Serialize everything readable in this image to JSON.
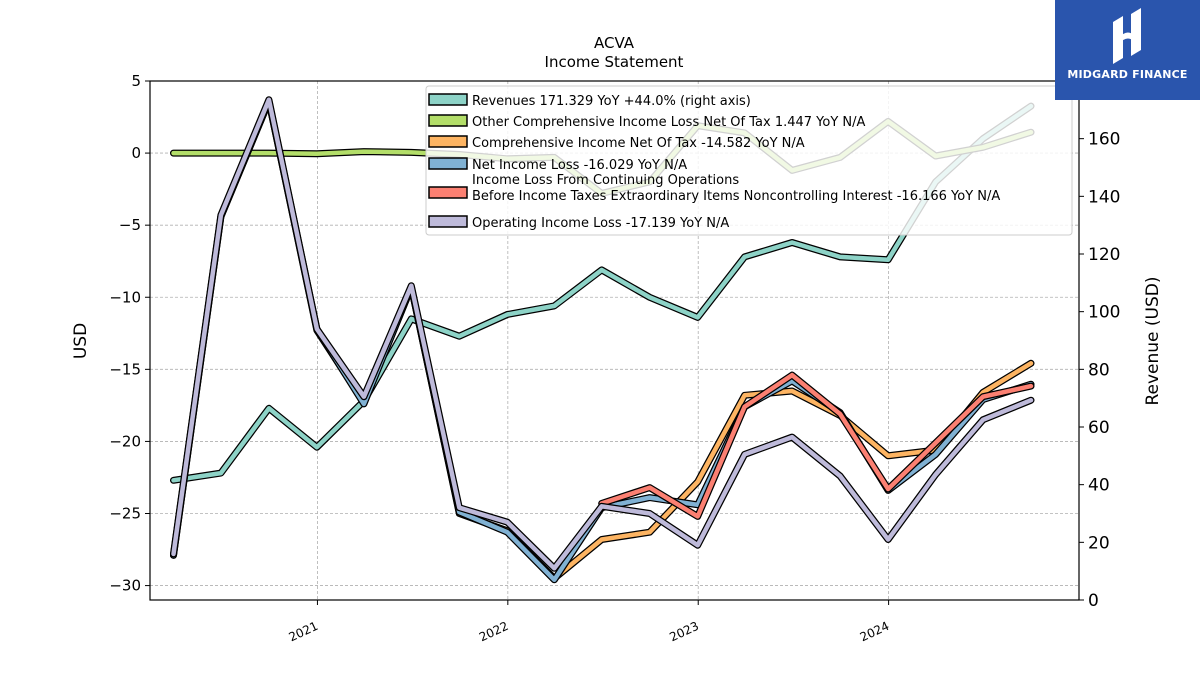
{
  "brand": {
    "name": "MIDGARD FINANCE",
    "icon": "midgard-logo-icon",
    "bg_color": "#2a55ad"
  },
  "chart_data": {
    "type": "line",
    "title": "ACVA",
    "subtitle": "Income Statement",
    "ylabel": "USD",
    "y2label": "Revenue (USD)",
    "ylim": [
      -31,
      5
    ],
    "y2lim": [
      0,
      180
    ],
    "yticks": [
      5,
      0,
      -5,
      -10,
      -15,
      -20,
      -25,
      -30
    ],
    "y2ticks": [
      0,
      20,
      40,
      60,
      80,
      100,
      120,
      140,
      160
    ],
    "xlim": [
      "2020-02-15",
      "2024-12-31"
    ],
    "xticks": [
      {
        "date": "2021-01-01",
        "label": "2021"
      },
      {
        "date": "2022-01-01",
        "label": "2022"
      },
      {
        "date": "2023-01-01",
        "label": "2023"
      },
      {
        "date": "2024-01-01",
        "label": "2024"
      }
    ],
    "grid": true,
    "legend_position": "top-right",
    "x": [
      "2020-03-31",
      "2020-06-30",
      "2020-09-30",
      "2020-12-31",
      "2021-03-31",
      "2021-06-30",
      "2021-09-30",
      "2021-12-31",
      "2022-03-31",
      "2022-06-30",
      "2022-09-30",
      "2022-12-31",
      "2023-03-31",
      "2023-06-30",
      "2023-09-30",
      "2023-12-31",
      "2024-03-31",
      "2024-06-30",
      "2024-09-30"
    ],
    "series": [
      {
        "name": "Revenues  171.329 YoY +44.0% (right axis)",
        "color": "#8dd3c7",
        "axis": "right",
        "values": [
          41.5,
          44,
          66.5,
          53,
          69,
          97.5,
          91.5,
          99,
          102,
          114.5,
          105,
          98,
          119,
          124,
          119,
          118,
          145,
          160,
          171.3
        ]
      },
      {
        "name": "Other Comprehensive Income Loss Net Of Tax  1.447 YoY N/A",
        "color": "#b3de69",
        "axis": "left",
        "values": [
          0.0,
          0.0,
          0.0,
          -0.05,
          0.1,
          0.05,
          -0.1,
          -0.4,
          -0.3,
          -2.8,
          -2.0,
          1.9,
          1.4,
          -1.2,
          -0.3,
          2.2,
          -0.2,
          0.4,
          1.447
        ]
      },
      {
        "name": "Comprehensive Income Net Of Tax  -14.582 YoY N/A",
        "color": "#fdb462",
        "axis": "left",
        "values": [
          -27.9,
          -4.4,
          3.6,
          -12.3,
          -17.3,
          -9.3,
          -25.0,
          -26.2,
          -29.5,
          -26.8,
          -26.3,
          -22.8,
          -16.8,
          -16.5,
          -18.2,
          -21.0,
          -20.6,
          -16.6,
          -14.582
        ]
      },
      {
        "name": "Net Income Loss  -16.029 YoY N/A",
        "color": "#80b1d3",
        "axis": "left",
        "values": [
          -27.9,
          -4.4,
          3.6,
          -12.2,
          -17.4,
          -9.3,
          -24.9,
          -26.3,
          -29.6,
          -24.6,
          -23.9,
          -24.4,
          -17.6,
          -15.8,
          -18.0,
          -23.4,
          -20.9,
          -17.1,
          -16.029
        ]
      },
      {
        "name": "Income Loss From Continuing Operations\nBefore Income Taxes Extraordinary Items Noncontrolling Interest  -16.166 YoY N/A",
        "color": "#fb8072",
        "axis": "left",
        "values": [
          null,
          null,
          null,
          null,
          null,
          null,
          null,
          null,
          null,
          -24.3,
          -23.2,
          -25.2,
          -17.6,
          -15.4,
          -18.1,
          -23.3,
          -20.1,
          -16.9,
          -16.166
        ]
      },
      {
        "name": "Operating Income Loss  -17.139 YoY N/A",
        "color": "#bebada",
        "axis": "left",
        "values": [
          -27.8,
          -4.3,
          3.7,
          -12.2,
          -16.9,
          -9.2,
          -24.6,
          -25.6,
          -28.8,
          -24.5,
          -25.0,
          -27.2,
          -20.9,
          -19.7,
          -22.4,
          -26.8,
          -22.3,
          -18.5,
          -17.139
        ]
      }
    ]
  }
}
